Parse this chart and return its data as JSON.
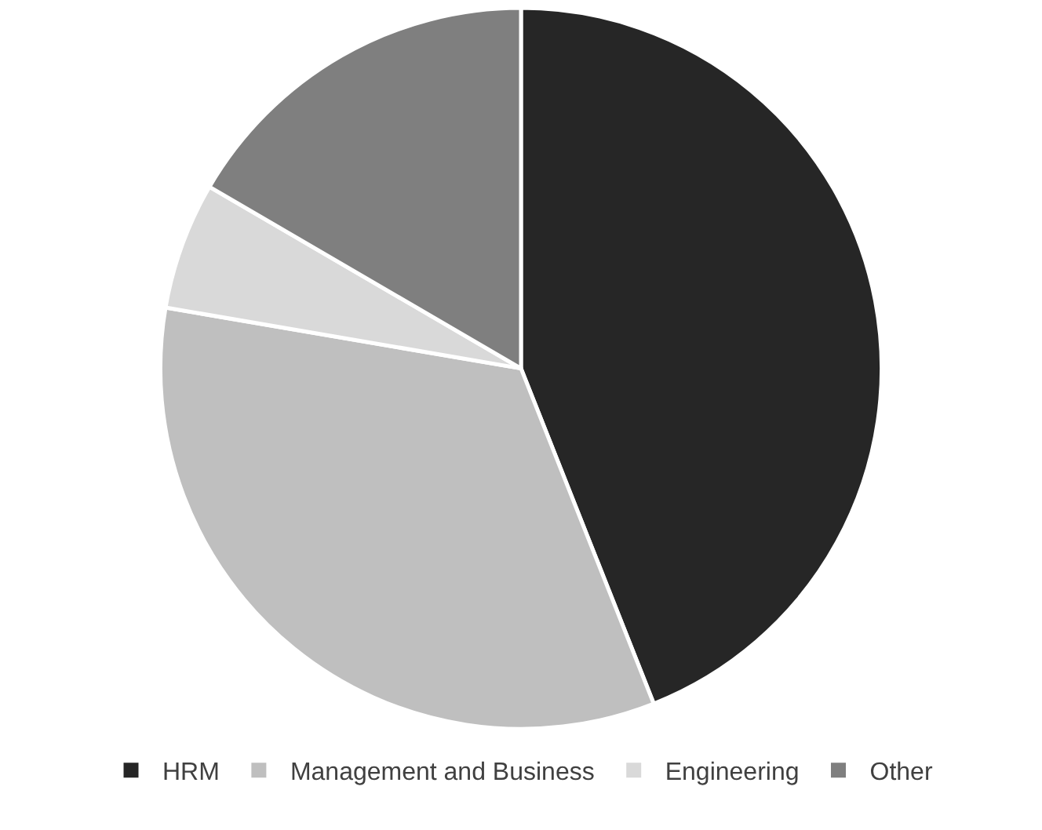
{
  "chart_data": {
    "type": "pie",
    "categories": [
      "HRM",
      "Management and Business",
      "Engineering",
      "Other"
    ],
    "values": [
      44,
      33.7,
      5.7,
      16.6
    ],
    "colors": [
      "#262626",
      "#bfbfbf",
      "#d9d9d9",
      "#7f7f7f"
    ],
    "legend": "bottom"
  }
}
